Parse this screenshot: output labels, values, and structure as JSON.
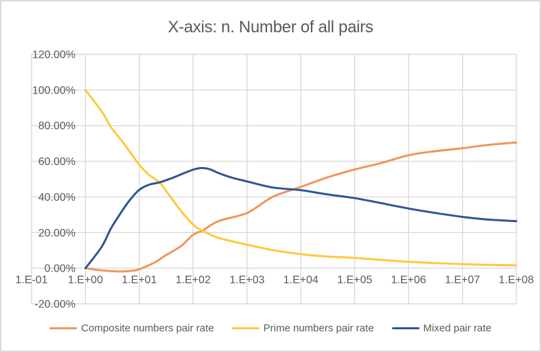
{
  "style": {
    "background": "#FFFFFF",
    "border_color": "#D9D9D9",
    "grid_color": "#D9D9D9",
    "text_color": "#595959"
  },
  "chart_data": {
    "type": "line",
    "title": "X-axis: n. Number of all pairs",
    "grid": true,
    "legend_position": "bottom",
    "x_axis": {
      "scale": "log10",
      "range": [
        0.1,
        100000000
      ],
      "tick_labels": [
        "1.E-01",
        "1.E+00",
        "1.E+01",
        "1.E+02",
        "1.E+03",
        "1.E+04",
        "1.E+05",
        "1.E+06",
        "1.E+07",
        "1.E+08"
      ],
      "tick_values": [
        0.1,
        1,
        10,
        100,
        1000,
        10000,
        100000,
        1000000,
        10000000,
        100000000
      ]
    },
    "y_axis": {
      "unit": "%",
      "range": [
        -20,
        120
      ],
      "tick_labels": [
        "120.00%",
        "100.00%",
        "80.00%",
        "60.00%",
        "40.00%",
        "20.00%",
        "0.00%",
        "-20.00%"
      ],
      "tick_values": [
        120,
        100,
        80,
        60,
        40,
        20,
        0,
        -20
      ]
    },
    "series": [
      {
        "name": "Composite numbers pair rate",
        "color": "#F0955A",
        "smooth": true,
        "points_n_pct": [
          [
            1,
            0
          ],
          [
            2,
            -1.2
          ],
          [
            4,
            -1.8
          ],
          [
            7,
            -1.5
          ],
          [
            10,
            -0.6
          ],
          [
            20,
            3.5
          ],
          [
            30,
            7
          ],
          [
            60,
            12.5
          ],
          [
            100,
            18.8
          ],
          [
            150,
            21.2
          ],
          [
            300,
            26.5
          ],
          [
            1000,
            31
          ],
          [
            3000,
            40
          ],
          [
            10000,
            45.6
          ],
          [
            30000,
            50.8
          ],
          [
            100000,
            55.4
          ],
          [
            300000,
            58.9
          ],
          [
            1000000,
            63.4
          ],
          [
            3000000,
            65.6
          ],
          [
            10000000,
            67.3
          ],
          [
            30000000,
            69.2
          ],
          [
            100000000,
            70.5
          ]
        ]
      },
      {
        "name": "Prime numbers pair rate",
        "color": "#FFC83C",
        "smooth": true,
        "points_n_pct": [
          [
            1,
            100
          ],
          [
            2,
            88
          ],
          [
            3,
            79
          ],
          [
            5,
            70.5
          ],
          [
            7,
            64.5
          ],
          [
            10,
            58
          ],
          [
            15,
            52.5
          ],
          [
            24,
            48
          ],
          [
            33,
            42.5
          ],
          [
            60,
            32
          ],
          [
            100,
            24.5
          ],
          [
            150,
            21
          ],
          [
            300,
            17
          ],
          [
            1000,
            13.2
          ],
          [
            3000,
            10.2
          ],
          [
            10000,
            7.9
          ],
          [
            30000,
            6.6
          ],
          [
            100000,
            5.8
          ],
          [
            300000,
            4.7
          ],
          [
            1000000,
            3.6
          ],
          [
            3000000,
            2.9
          ],
          [
            10000000,
            2.3
          ],
          [
            30000000,
            1.9
          ],
          [
            100000000,
            1.6
          ]
        ]
      },
      {
        "name": "Mixed pair rate",
        "color": "#2F5597",
        "smooth": true,
        "points_n_pct": [
          [
            1,
            0
          ],
          [
            2,
            12
          ],
          [
            3,
            22.5
          ],
          [
            5,
            33
          ],
          [
            7,
            39
          ],
          [
            10,
            44
          ],
          [
            15,
            46.8
          ],
          [
            24,
            48.2
          ],
          [
            40,
            50.5
          ],
          [
            70,
            53.5
          ],
          [
            100,
            55.3
          ],
          [
            140,
            56.2
          ],
          [
            200,
            55.6
          ],
          [
            300,
            53.3
          ],
          [
            500,
            51
          ],
          [
            1000,
            48.7
          ],
          [
            3000,
            45.3
          ],
          [
            10000,
            43.8
          ],
          [
            30000,
            41.5
          ],
          [
            100000,
            39.3
          ],
          [
            300000,
            36.6
          ],
          [
            1000000,
            33.5
          ],
          [
            3000000,
            31.1
          ],
          [
            10000000,
            28.8
          ],
          [
            30000000,
            27.3
          ],
          [
            100000000,
            26.4
          ]
        ]
      }
    ]
  }
}
